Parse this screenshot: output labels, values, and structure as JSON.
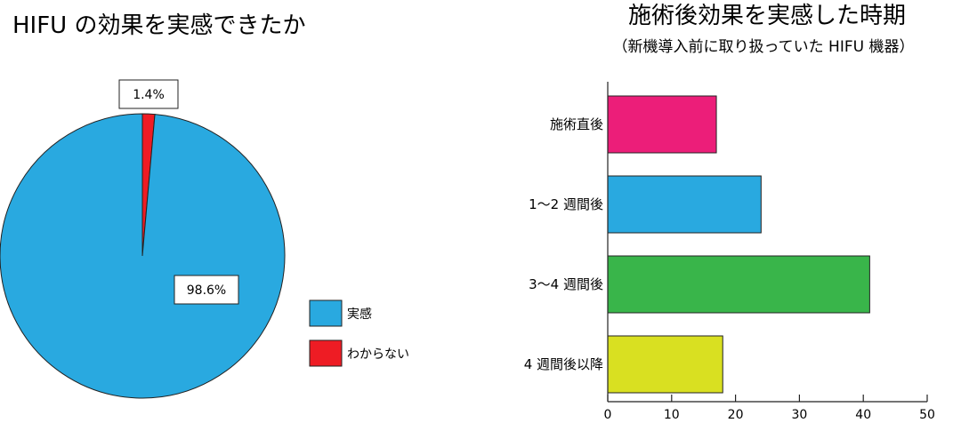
{
  "chart_data": [
    {
      "type": "pie",
      "title": "HIFU の効果を実感できたか",
      "categories": [
        "実感",
        "わからない"
      ],
      "values": [
        98.6,
        1.4
      ],
      "labels": [
        "98.6%",
        "1.4%"
      ],
      "colors": [
        "#29A9E0",
        "#EE1C24"
      ],
      "legend_position": "right"
    },
    {
      "type": "bar",
      "orientation": "horizontal",
      "title": "施術後効果を実感した時期",
      "subtitle": "（新機導入前に取り扱っていた HIFU 機器）",
      "categories": [
        "施術直後",
        "1〜2 週間後",
        "3〜4 週間後",
        "4 週間後以降"
      ],
      "values": [
        17,
        24,
        41,
        18
      ],
      "colors": [
        "#EC1E79",
        "#29A9E0",
        "#39B54A",
        "#D9E021"
      ],
      "xlim": [
        0,
        50
      ],
      "xticks": [
        "0",
        "10",
        "20",
        "30",
        "40",
        "50"
      ],
      "grid": false
    }
  ]
}
